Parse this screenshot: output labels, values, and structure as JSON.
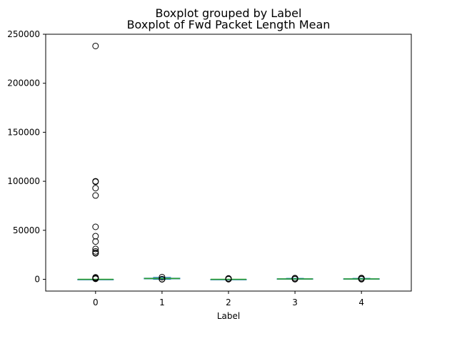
{
  "chart_data": {
    "type": "boxplot",
    "suptitle": "Boxplot grouped by Label",
    "title": "Boxplot of Fwd Packet Length Mean",
    "xlabel": "Label",
    "ylabel": "",
    "categories": [
      "0",
      "1",
      "2",
      "3",
      "4"
    ],
    "ylim": [
      -12000,
      250000
    ],
    "yticks": [
      0,
      50000,
      100000,
      150000,
      200000,
      250000
    ],
    "ytick_labels": [
      "0",
      "50000",
      "100000",
      "150000",
      "200000",
      "250000"
    ],
    "grid": false,
    "colors": {
      "box": "#1f77b4",
      "median": "#2ca02c",
      "flier": "#000000",
      "axes": "#000000"
    },
    "boxes": [
      {
        "label": "0",
        "whisker_low": 0,
        "q1": 0,
        "median": 0,
        "q3": 0,
        "whisker_high": 0,
        "fliers": [
          238000,
          100000,
          99500,
          93000,
          85500,
          53500,
          44000,
          38500,
          31000,
          28500,
          27000,
          26500,
          2000,
          1500,
          1000,
          500
        ]
      },
      {
        "label": "1",
        "whisker_low": 0,
        "q1": 400,
        "median": 800,
        "q3": 1200,
        "whisker_high": 2000,
        "fliers": [
          200,
          100,
          50,
          2200
        ]
      },
      {
        "label": "2",
        "whisker_low": 0,
        "q1": 0,
        "median": 0,
        "q3": 0,
        "whisker_high": 0,
        "fliers": [
          900,
          700,
          500,
          300,
          100
        ]
      },
      {
        "label": "3",
        "whisker_low": 0,
        "q1": 200,
        "median": 400,
        "q3": 600,
        "whisker_high": 1000,
        "fliers": [
          1200,
          1100,
          900,
          100
        ]
      },
      {
        "label": "4",
        "whisker_low": 0,
        "q1": 200,
        "median": 400,
        "q3": 600,
        "whisker_high": 1000,
        "fliers": [
          1300,
          1100,
          900,
          100
        ]
      }
    ]
  }
}
